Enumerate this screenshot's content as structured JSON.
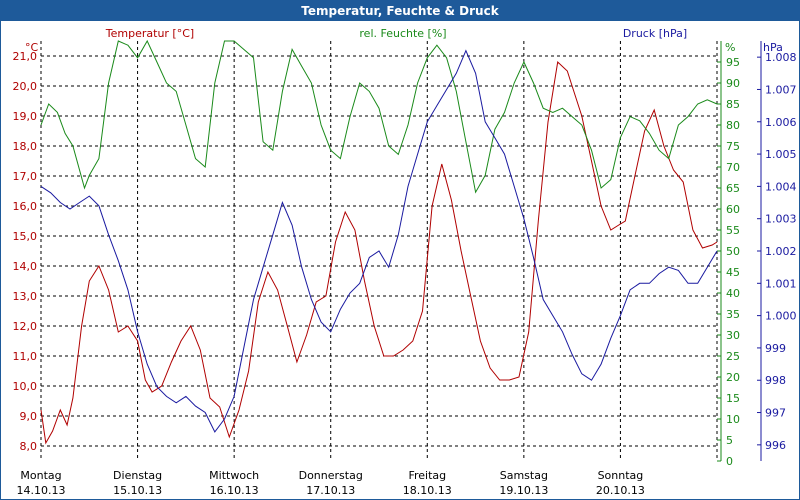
{
  "window": {
    "title": "Temperatur, Feuchte & Druck"
  },
  "chart_data": {
    "type": "line",
    "title": "Temperatur, Feuchte & Druck",
    "x_days": [
      {
        "day": "Montag",
        "date": "14.10.13"
      },
      {
        "day": "Dienstag",
        "date": "15.10.13"
      },
      {
        "day": "Mittwoch",
        "date": "16.10.13"
      },
      {
        "day": "Donnerstag",
        "date": "17.10.13"
      },
      {
        "day": "Freitag",
        "date": "18.10.13"
      },
      {
        "day": "Samstag",
        "date": "19.10.13"
      },
      {
        "day": "Sonntag",
        "date": "20.10.13"
      }
    ],
    "xlim": [
      0,
      7
    ],
    "grid": true,
    "axes": {
      "temperature": {
        "label": "Temperatur [°C]",
        "unit": "°C",
        "color": "#b00000",
        "ylim": [
          7.5,
          21.5
        ],
        "ticks": [
          "21,0",
          "20,0",
          "19,0",
          "18,0",
          "17,0",
          "16,0",
          "15,0",
          "14,0",
          "13,0",
          "12,0",
          "11,0",
          "10,0",
          "9,0",
          "8,0"
        ]
      },
      "humidity": {
        "label": "rel. Feuchte [%]",
        "unit": "%",
        "color": "#1a8a1a",
        "ylim": [
          0,
          100
        ],
        "ticks": [
          "95",
          "90",
          "85",
          "80",
          "75",
          "70",
          "65",
          "60",
          "55",
          "50",
          "45",
          "40",
          "35",
          "30",
          "25",
          "20",
          "15",
          "10",
          "5",
          "0"
        ]
      },
      "pressure": {
        "label": "Druck [hPa]",
        "unit": "hPa",
        "color": "#1a1aa0",
        "ylim": [
          995.5,
          1008.5
        ],
        "ticks": [
          "1.008",
          "1.007",
          "1.006",
          "1.005",
          "1.004",
          "1.003",
          "1.002",
          "1.001",
          "1.000",
          "999",
          "998",
          "997",
          "996"
        ]
      }
    },
    "series": [
      {
        "name": "Temperatur [°C]",
        "axis": "temperature",
        "color": "#b00000",
        "x": [
          0,
          0.05,
          0.12,
          0.2,
          0.27,
          0.33,
          0.42,
          0.5,
          0.6,
          0.7,
          0.8,
          0.9,
          1,
          1.08,
          1.15,
          1.25,
          1.35,
          1.45,
          1.55,
          1.65,
          1.75,
          1.85,
          1.95,
          2.05,
          2.15,
          2.25,
          2.35,
          2.45,
          2.55,
          2.65,
          2.75,
          2.85,
          2.95,
          3.05,
          3.15,
          3.25,
          3.35,
          3.45,
          3.55,
          3.65,
          3.75,
          3.85,
          3.95,
          4.05,
          4.15,
          4.25,
          4.35,
          4.45,
          4.55,
          4.65,
          4.75,
          4.85,
          4.95,
          5.05,
          5.15,
          5.25,
          5.35,
          5.45,
          5.5,
          5.6,
          5.7,
          5.8,
          5.9,
          6.0,
          6.05,
          6.15,
          6.25,
          6.35,
          6.45,
          6.55,
          6.65,
          6.75,
          6.85,
          6.95,
          7.0
        ],
        "values": [
          9.2,
          8.1,
          8.5,
          9.2,
          8.7,
          9.6,
          12.0,
          13.5,
          14.0,
          13.2,
          11.8,
          12.0,
          11.5,
          10.2,
          9.8,
          10.0,
          10.8,
          11.5,
          12.0,
          11.2,
          9.6,
          9.3,
          8.3,
          9.2,
          10.5,
          12.8,
          13.8,
          13.2,
          12.0,
          10.8,
          11.7,
          12.8,
          13.0,
          14.8,
          15.8,
          15.2,
          13.5,
          12.0,
          11.0,
          11.0,
          11.2,
          11.5,
          12.5,
          16.0,
          17.4,
          16.2,
          14.5,
          13.0,
          11.5,
          10.6,
          10.2,
          10.2,
          10.3,
          11.8,
          15.5,
          18.8,
          20.8,
          20.5,
          20.0,
          19.0,
          17.5,
          16.0,
          15.2,
          15.4,
          15.5,
          17.0,
          18.5,
          19.2,
          18.0,
          17.2,
          16.8,
          15.2,
          14.6,
          14.7,
          14.8
        ]
      },
      {
        "name": "rel. Feuchte [%]",
        "axis": "humidity",
        "color": "#1a8a1a",
        "x": [
          0,
          0.08,
          0.17,
          0.25,
          0.33,
          0.45,
          0.5,
          0.6,
          0.7,
          0.8,
          0.9,
          1.0,
          1.1,
          1.2,
          1.3,
          1.4,
          1.5,
          1.6,
          1.7,
          1.8,
          1.9,
          2.0,
          2.1,
          2.2,
          2.3,
          2.4,
          2.5,
          2.6,
          2.7,
          2.8,
          2.9,
          3.0,
          3.1,
          3.2,
          3.3,
          3.4,
          3.5,
          3.6,
          3.7,
          3.8,
          3.9,
          4.0,
          4.1,
          4.2,
          4.3,
          4.4,
          4.5,
          4.6,
          4.7,
          4.8,
          4.9,
          5.0,
          5.1,
          5.2,
          5.3,
          5.4,
          5.5,
          5.6,
          5.7,
          5.8,
          5.9,
          6.0,
          6.1,
          6.2,
          6.3,
          6.4,
          6.5,
          6.6,
          6.7,
          6.8,
          6.9,
          7.0
        ],
        "values": [
          80,
          85,
          83,
          78,
          75,
          65,
          68,
          72,
          90,
          100,
          99,
          96,
          100,
          95,
          90,
          88,
          80,
          72,
          70,
          90,
          100,
          100,
          98,
          96,
          76,
          74,
          88,
          98,
          94,
          90,
          80,
          74,
          72,
          82,
          90,
          88,
          84,
          75,
          73,
          80,
          90,
          96,
          99,
          96,
          88,
          76,
          64,
          68,
          79,
          83,
          90,
          95,
          90,
          84,
          83,
          84,
          82,
          80,
          74,
          65,
          67,
          77,
          82,
          81,
          78,
          74,
          72,
          80,
          82,
          85,
          86,
          85
        ]
      },
      {
        "name": "Druck [hPa]",
        "axis": "pressure",
        "color": "#1a1aa0",
        "x": [
          0,
          0.1,
          0.2,
          0.3,
          0.4,
          0.5,
          0.6,
          0.7,
          0.8,
          0.9,
          1.0,
          1.1,
          1.2,
          1.3,
          1.4,
          1.5,
          1.6,
          1.7,
          1.8,
          1.9,
          2.0,
          2.1,
          2.2,
          2.3,
          2.4,
          2.5,
          2.6,
          2.7,
          2.8,
          2.9,
          3.0,
          3.1,
          3.2,
          3.3,
          3.4,
          3.5,
          3.6,
          3.7,
          3.8,
          3.9,
          4.0,
          4.1,
          4.2,
          4.3,
          4.4,
          4.5,
          4.6,
          4.7,
          4.8,
          4.9,
          5.0,
          5.1,
          5.2,
          5.3,
          5.4,
          5.5,
          5.6,
          5.7,
          5.8,
          5.9,
          6.0,
          6.1,
          6.2,
          6.3,
          6.4,
          6.5,
          6.6,
          6.7,
          6.8,
          6.9,
          7.0
        ],
        "values": [
          1004.0,
          1003.8,
          1003.5,
          1003.3,
          1003.5,
          1003.7,
          1003.4,
          1002.5,
          1001.7,
          1000.8,
          999.5,
          998.5,
          997.8,
          997.5,
          997.3,
          997.5,
          997.2,
          997.0,
          996.4,
          996.8,
          997.5,
          999.0,
          1000.5,
          1001.5,
          1002.5,
          1003.5,
          1002.8,
          1001.5,
          1000.5,
          999.8,
          999.5,
          1000.2,
          1000.7,
          1001.0,
          1001.8,
          1002.0,
          1001.5,
          1002.5,
          1004.0,
          1005.0,
          1006.0,
          1006.5,
          1007.0,
          1007.5,
          1008.2,
          1007.5,
          1006.0,
          1005.5,
          1005.0,
          1004.0,
          1003.0,
          1001.8,
          1000.5,
          1000.0,
          999.5,
          998.8,
          998.2,
          998.0,
          998.5,
          999.3,
          1000.0,
          1000.8,
          1001.0,
          1001.0,
          1001.3,
          1001.5,
          1001.4,
          1001.0,
          1001.0,
          1001.5,
          1002.0
        ]
      }
    ]
  }
}
